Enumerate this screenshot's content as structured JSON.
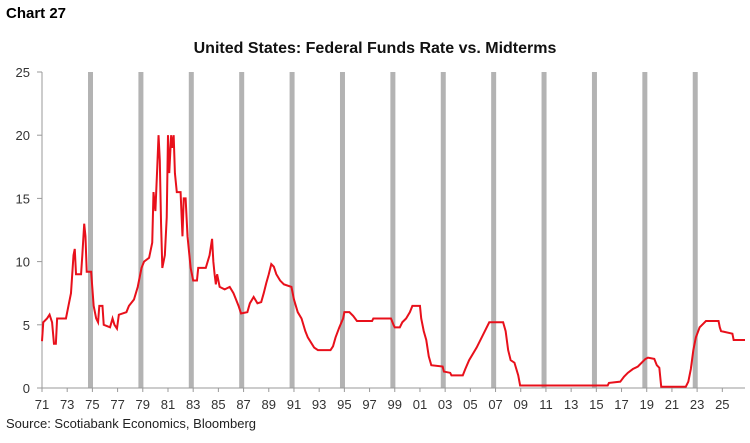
{
  "header": {
    "label": "Chart 27"
  },
  "footer": {
    "source": "Source: Scotiabank Economics, Bloomberg"
  },
  "chart_data": {
    "type": "line",
    "title": "United States: Federal Funds Rate vs. Midterms",
    "xlabel": "",
    "ylabel": "",
    "xlim": [
      1971,
      2026.8
    ],
    "ylim": [
      0,
      25
    ],
    "yticks": [
      0,
      5,
      10,
      15,
      20,
      25
    ],
    "xtick_labels": [
      "71",
      "73",
      "75",
      "77",
      "79",
      "81",
      "83",
      "85",
      "87",
      "89",
      "91",
      "93",
      "95",
      "97",
      "99",
      "01",
      "03",
      "05",
      "07",
      "09",
      "11",
      "13",
      "15",
      "17",
      "19",
      "21",
      "23",
      "25"
    ],
    "midterm_years": [
      1974.85,
      1978.85,
      1982.85,
      1986.85,
      1990.85,
      1994.85,
      1998.85,
      2002.85,
      2006.85,
      2010.85,
      2014.85,
      2018.85,
      2022.85
    ],
    "colors": {
      "series": "#e8101b",
      "midterm_bars": "#b3b3b3",
      "axis": "#999999"
    },
    "series": [
      {
        "name": "",
        "points": [
          [
            1971.0,
            3.7
          ],
          [
            1971.1,
            5.2
          ],
          [
            1971.4,
            5.5
          ],
          [
            1971.6,
            5.8
          ],
          [
            1971.8,
            5.2
          ],
          [
            1971.95,
            3.5
          ],
          [
            1972.1,
            3.5
          ],
          [
            1972.2,
            5.5
          ],
          [
            1972.9,
            5.5
          ],
          [
            1973.1,
            6.5
          ],
          [
            1973.3,
            7.5
          ],
          [
            1973.5,
            10.5
          ],
          [
            1973.6,
            11.0
          ],
          [
            1973.7,
            9.0
          ],
          [
            1974.1,
            9.0
          ],
          [
            1974.2,
            10.5
          ],
          [
            1974.35,
            13.0
          ],
          [
            1974.45,
            12.0
          ],
          [
            1974.55,
            9.2
          ],
          [
            1974.9,
            9.2
          ],
          [
            1975.1,
            6.5
          ],
          [
            1975.3,
            5.5
          ],
          [
            1975.45,
            5.2
          ],
          [
            1975.55,
            6.5
          ],
          [
            1975.8,
            6.5
          ],
          [
            1975.9,
            5.0
          ],
          [
            1976.4,
            4.8
          ],
          [
            1976.6,
            5.5
          ],
          [
            1976.75,
            5.0
          ],
          [
            1976.95,
            4.7
          ],
          [
            1977.1,
            5.8
          ],
          [
            1977.7,
            6.0
          ],
          [
            1977.9,
            6.5
          ],
          [
            1978.3,
            7.0
          ],
          [
            1978.6,
            8.0
          ],
          [
            1978.9,
            9.5
          ],
          [
            1979.1,
            10.0
          ],
          [
            1979.5,
            10.3
          ],
          [
            1979.75,
            11.5
          ],
          [
            1979.85,
            15.5
          ],
          [
            1980.0,
            14.0
          ],
          [
            1980.15,
            17.5
          ],
          [
            1980.25,
            20.0
          ],
          [
            1980.35,
            18.0
          ],
          [
            1980.45,
            13.0
          ],
          [
            1980.55,
            9.5
          ],
          [
            1980.75,
            10.5
          ],
          [
            1980.9,
            13.5
          ],
          [
            1981.0,
            20.0
          ],
          [
            1981.1,
            17.0
          ],
          [
            1981.25,
            20.0
          ],
          [
            1981.35,
            19.0
          ],
          [
            1981.45,
            20.0
          ],
          [
            1981.55,
            17.0
          ],
          [
            1981.7,
            15.5
          ],
          [
            1982.0,
            15.5
          ],
          [
            1982.15,
            12.0
          ],
          [
            1982.25,
            15.0
          ],
          [
            1982.4,
            15.0
          ],
          [
            1982.55,
            12.0
          ],
          [
            1982.7,
            10.5
          ],
          [
            1982.8,
            9.5
          ],
          [
            1983.0,
            8.5
          ],
          [
            1983.3,
            8.5
          ],
          [
            1983.4,
            9.5
          ],
          [
            1984.0,
            9.5
          ],
          [
            1984.3,
            10.5
          ],
          [
            1984.5,
            11.8
          ],
          [
            1984.6,
            10.0
          ],
          [
            1984.7,
            9.0
          ],
          [
            1984.8,
            8.2
          ],
          [
            1984.9,
            9.0
          ],
          [
            1985.1,
            8.0
          ],
          [
            1985.5,
            7.8
          ],
          [
            1985.9,
            8.0
          ],
          [
            1986.2,
            7.5
          ],
          [
            1986.4,
            7.0
          ],
          [
            1986.6,
            6.5
          ],
          [
            1986.8,
            5.9
          ],
          [
            1987.3,
            6.0
          ],
          [
            1987.5,
            6.7
          ],
          [
            1987.8,
            7.2
          ],
          [
            1988.1,
            6.7
          ],
          [
            1988.4,
            6.8
          ],
          [
            1988.6,
            7.5
          ],
          [
            1988.8,
            8.3
          ],
          [
            1989.0,
            9.0
          ],
          [
            1989.2,
            9.8
          ],
          [
            1989.4,
            9.6
          ],
          [
            1989.6,
            9.0
          ],
          [
            1989.9,
            8.5
          ],
          [
            1990.2,
            8.2
          ],
          [
            1990.8,
            8.0
          ],
          [
            1991.0,
            7.0
          ],
          [
            1991.3,
            6.0
          ],
          [
            1991.6,
            5.5
          ],
          [
            1991.9,
            4.5
          ],
          [
            1992.1,
            4.0
          ],
          [
            1992.6,
            3.2
          ],
          [
            1992.9,
            3.0
          ],
          [
            1993.9,
            3.0
          ],
          [
            1994.1,
            3.3
          ],
          [
            1994.3,
            4.0
          ],
          [
            1994.6,
            4.8
          ],
          [
            1994.9,
            5.5
          ],
          [
            1995.0,
            6.0
          ],
          [
            1995.4,
            6.0
          ],
          [
            1995.7,
            5.7
          ],
          [
            1996.0,
            5.3
          ],
          [
            1997.2,
            5.3
          ],
          [
            1997.3,
            5.5
          ],
          [
            1998.7,
            5.5
          ],
          [
            1998.9,
            5.0
          ],
          [
            1999.0,
            4.8
          ],
          [
            1999.4,
            4.8
          ],
          [
            1999.6,
            5.2
          ],
          [
            1999.9,
            5.5
          ],
          [
            2000.2,
            6.0
          ],
          [
            2000.4,
            6.5
          ],
          [
            2001.0,
            6.5
          ],
          [
            2001.1,
            5.5
          ],
          [
            2001.3,
            4.5
          ],
          [
            2001.5,
            3.8
          ],
          [
            2001.7,
            2.5
          ],
          [
            2001.9,
            1.8
          ],
          [
            2002.8,
            1.7
          ],
          [
            2002.9,
            1.3
          ],
          [
            2003.4,
            1.2
          ],
          [
            2003.5,
            1.0
          ],
          [
            2004.4,
            1.0
          ],
          [
            2004.6,
            1.5
          ],
          [
            2004.9,
            2.2
          ],
          [
            2005.5,
            3.2
          ],
          [
            2006.0,
            4.2
          ],
          [
            2006.5,
            5.2
          ],
          [
            2007.6,
            5.2
          ],
          [
            2007.8,
            4.5
          ],
          [
            2008.0,
            3.0
          ],
          [
            2008.2,
            2.2
          ],
          [
            2008.5,
            2.0
          ],
          [
            2008.8,
            1.0
          ],
          [
            2008.95,
            0.2
          ],
          [
            2015.9,
            0.2
          ],
          [
            2016.0,
            0.4
          ],
          [
            2016.9,
            0.5
          ],
          [
            2017.2,
            0.9
          ],
          [
            2017.5,
            1.2
          ],
          [
            2017.9,
            1.5
          ],
          [
            2018.3,
            1.7
          ],
          [
            2018.6,
            2.0
          ],
          [
            2018.9,
            2.3
          ],
          [
            2019.1,
            2.4
          ],
          [
            2019.6,
            2.3
          ],
          [
            2019.8,
            1.8
          ],
          [
            2020.0,
            1.6
          ],
          [
            2020.15,
            0.1
          ],
          [
            2022.1,
            0.1
          ],
          [
            2022.3,
            0.5
          ],
          [
            2022.5,
            1.5
          ],
          [
            2022.7,
            3.0
          ],
          [
            2022.9,
            4.0
          ],
          [
            2023.2,
            4.8
          ],
          [
            2023.5,
            5.1
          ],
          [
            2023.7,
            5.3
          ],
          [
            2024.7,
            5.3
          ],
          [
            2024.8,
            4.8
          ],
          [
            2024.9,
            4.5
          ],
          [
            2025.8,
            4.3
          ],
          [
            2025.9,
            3.8
          ],
          [
            2026.8,
            3.8
          ]
        ]
      }
    ]
  }
}
